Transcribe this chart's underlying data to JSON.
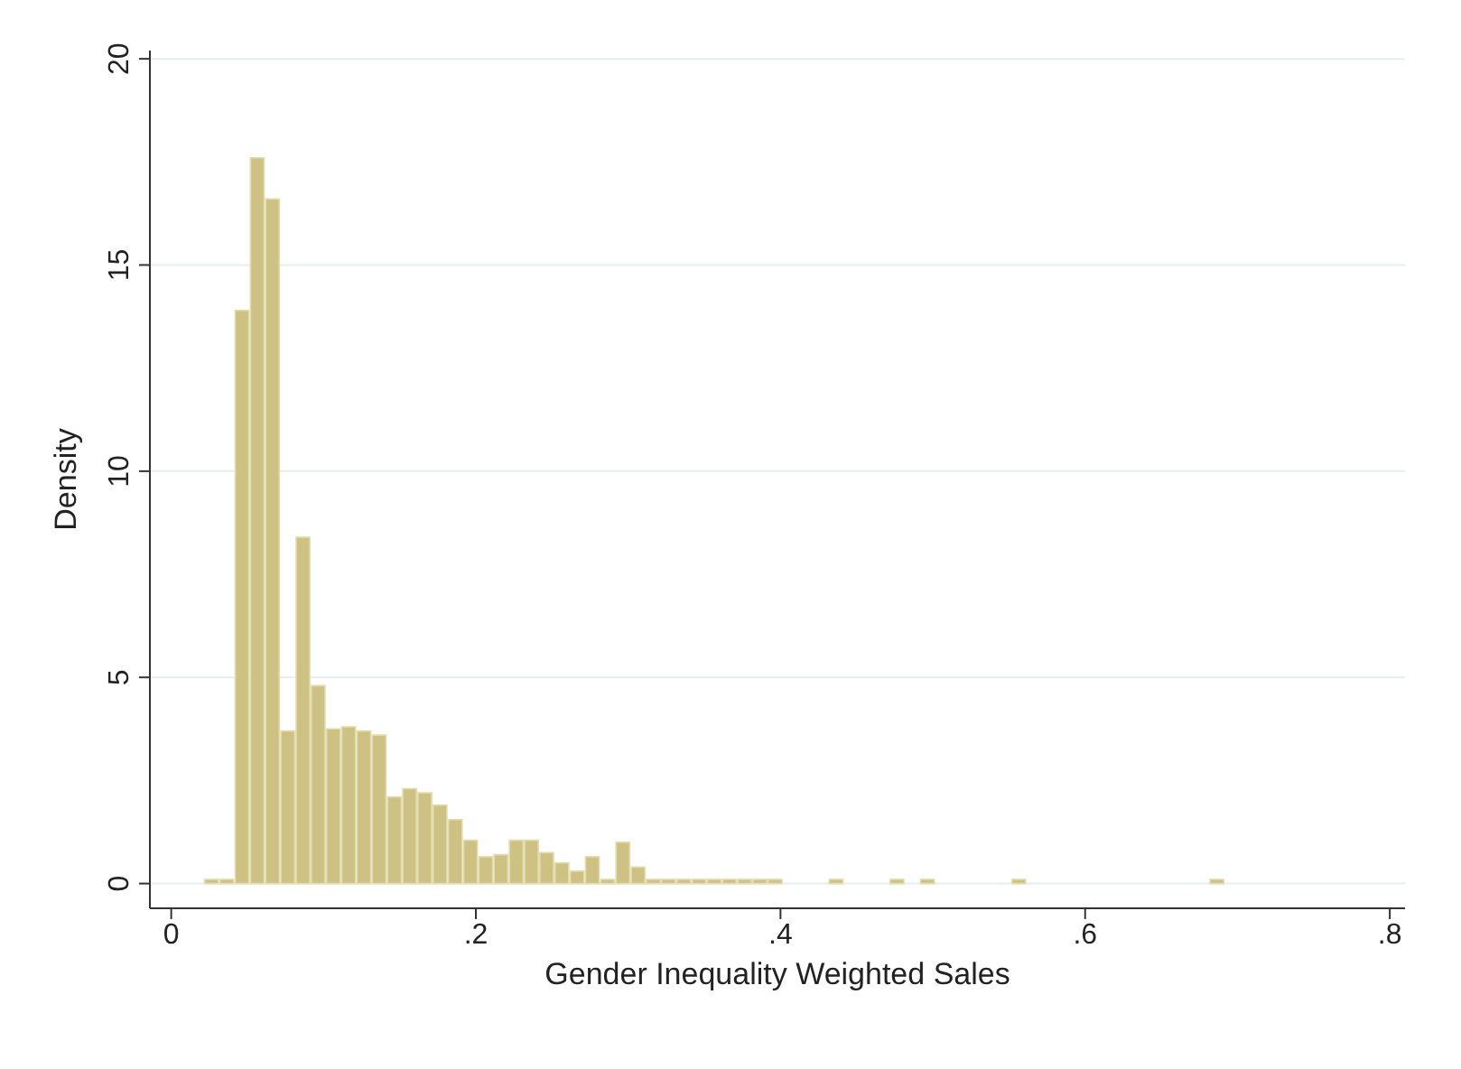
{
  "chart_data": {
    "type": "histogram",
    "xlabel": "Gender Inequality Weighted Sales",
    "ylabel": "Density",
    "bins": [
      0.022,
      0.032,
      0.042,
      0.052,
      0.062,
      0.072,
      0.082,
      0.092,
      0.102,
      0.112,
      0.122,
      0.132,
      0.142,
      0.152,
      0.162,
      0.172,
      0.182,
      0.192,
      0.202,
      0.212,
      0.222,
      0.232,
      0.242,
      0.252,
      0.262,
      0.272,
      0.282,
      0.292,
      0.302,
      0.312,
      0.322,
      0.332,
      0.342,
      0.352,
      0.362,
      0.372,
      0.382,
      0.392,
      0.402,
      0.412,
      0.422,
      0.432,
      0.442,
      0.452,
      0.462,
      0.472,
      0.482,
      0.492,
      0.502,
      0.512,
      0.522,
      0.532,
      0.542,
      0.552,
      0.562,
      0.572,
      0.582,
      0.592,
      0.602,
      0.612,
      0.622,
      0.632,
      0.642,
      0.652,
      0.662,
      0.672,
      0.682,
      0.692
    ],
    "values": [
      0.1,
      0.1,
      13.9,
      17.6,
      16.6,
      3.7,
      8.4,
      4.8,
      3.75,
      3.8,
      3.7,
      3.6,
      2.1,
      2.3,
      2.2,
      1.9,
      1.55,
      1.05,
      0.65,
      0.7,
      1.05,
      1.05,
      0.75,
      0.5,
      0.3,
      0.65,
      0.1,
      1.0,
      0.4,
      0.1,
      0.1,
      0.1,
      0.1,
      0.1,
      0.1,
      0.1,
      0.1,
      0.1,
      0,
      0,
      0,
      0.1,
      0,
      0,
      0,
      0.1,
      0,
      0.1,
      0,
      0,
      0,
      0,
      0,
      0.1,
      0,
      0,
      0,
      0,
      0,
      0,
      0,
      0,
      0,
      0,
      0,
      0,
      0.1
    ],
    "color": "#cdc283",
    "xlim": [
      -0.014,
      0.81
    ],
    "xticks": [
      0,
      {
        "value": 0.2,
        "label": ".2"
      },
      {
        "value": 0.4,
        "label": ".4"
      },
      {
        "value": 0.6,
        "label": ".6"
      },
      {
        "value": 0.8,
        "label": ".8"
      }
    ],
    "ylim": [
      -0.6,
      20.2
    ],
    "yticks": [
      0,
      5,
      10,
      15,
      20
    ],
    "grid": "y"
  }
}
